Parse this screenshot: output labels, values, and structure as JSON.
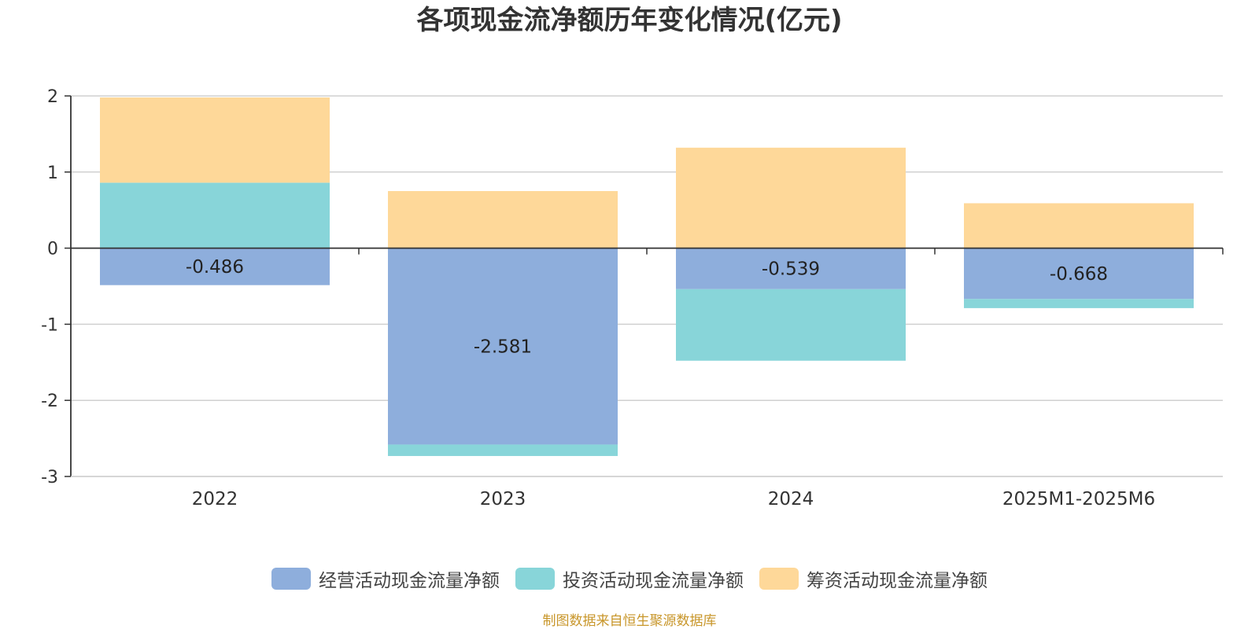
{
  "chart_data": {
    "type": "bar",
    "stacked": true,
    "title": "各项现金流净额历年变化情况(亿元)",
    "categories": [
      "2022",
      "2023",
      "2024",
      "2025M1-2025M6"
    ],
    "series": [
      {
        "name": "经营活动现金流量净额",
        "color": "#8eaedc",
        "values": [
          -0.486,
          -2.581,
          -0.539,
          -0.668
        ]
      },
      {
        "name": "投资活动现金流量净额",
        "color": "#88d5d9",
        "values": [
          0.86,
          -0.15,
          -0.94,
          -0.12
        ]
      },
      {
        "name": "筹资活动现金流量净额",
        "color": "#fed899",
        "values": [
          1.12,
          0.75,
          1.32,
          0.59
        ]
      }
    ],
    "data_labels": [
      "-0.486",
      "-2.581",
      "-0.539",
      "-0.668"
    ],
    "ylim": [
      -3,
      2
    ],
    "yticks": [
      2,
      1,
      0,
      -1,
      -2,
      -3
    ],
    "grid": true,
    "legend_position": "bottom"
  },
  "footer": {
    "source": "制图数据来自恒生聚源数据库"
  }
}
